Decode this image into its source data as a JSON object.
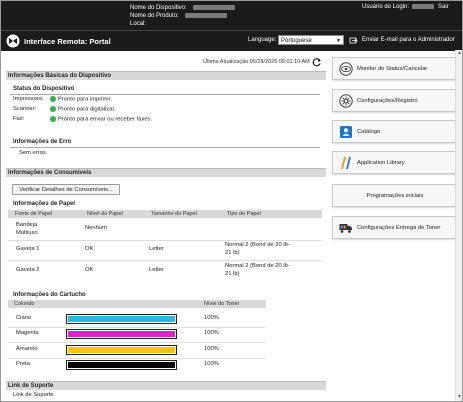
{
  "device": {
    "name_label": "Nome do Dispositivo:",
    "product_label": "Nome do Produto:",
    "location_label": "Local:"
  },
  "login": {
    "label": "Usuário do Login:",
    "logout": "Sair"
  },
  "header": {
    "title": "Interface Remota: Portal",
    "language_label": "Language:",
    "language_value": "Portuguese",
    "mail_link": "Enviar E-mail para o Administrador"
  },
  "update": {
    "text": "Última Atualização:05/28/2025 05:01:10 AM"
  },
  "basic": {
    "section": "Informações Básicas do Dispositivo",
    "status_title": "Status do Dispositivo",
    "rows": [
      {
        "label": "Impressora:",
        "status": "Pronto para imprimir."
      },
      {
        "label": "Scanner:",
        "status": "Pronto para digitalizar."
      },
      {
        "label": "Fax:",
        "status": "Pronto para enviar ou receber faxes."
      }
    ],
    "error_title": "Informações de Erro",
    "error_text": "Sem erros."
  },
  "consumables": {
    "section": "Informações de Consumíveis",
    "verify_button": "Verificar Detalhes de Consumíveis...",
    "paper_title": "Informações de Papel",
    "paper_headers": [
      "Fonte de Papel",
      "Nível do Papel",
      "Tamanho do Papel",
      "Tipo de Papel"
    ],
    "paper_rows": [
      {
        "source": "Bandeja Multiuso",
        "level": "Nenhum",
        "size": "",
        "type": ""
      },
      {
        "source": "Gaveta 1",
        "level": "OK",
        "size": "Letter",
        "type": "Normal 2 (Bond de 20 lb-21 lb)"
      },
      {
        "source": "Gaveta 2",
        "level": "OK",
        "size": "Letter",
        "type": "Normal 2 (Bond de 20 lb-21 lb)"
      }
    ],
    "cartridge_title": "Informações do Cartucho",
    "cartridge_headers": [
      "Colorido",
      "Nível do Toner"
    ],
    "cartridges": [
      {
        "name": "Ciano",
        "level": "100%",
        "color": "#2bb6e6",
        "fill_fraction": 1.0
      },
      {
        "name": "Magenta",
        "level": "100%",
        "color": "#e020c8",
        "fill_fraction": 1.0
      },
      {
        "name": "Amarelo",
        "level": "100%",
        "color": "#ffc400",
        "fill_fraction": 1.0
      },
      {
        "name": "Preta",
        "level": "100%",
        "color": "#000000",
        "fill_fraction": 1.0
      }
    ]
  },
  "support": {
    "section": "Link de Suporte",
    "link": "Link de Suporte"
  },
  "nav": [
    {
      "label": "Monitor do Status/Cancelar",
      "icon": "monitor-eye-icon"
    },
    {
      "label": "Configurações/Registro",
      "icon": "settings-gear-icon"
    },
    {
      "label": "Catálogo",
      "icon": "address-book-icon"
    },
    {
      "label": "Application Library",
      "icon": "application-library-icon"
    },
    {
      "label": "Programações iniciais",
      "icon": ""
    },
    {
      "label": "Configurações Entrega de Toner",
      "icon": "toner-delivery-icon"
    }
  ]
}
